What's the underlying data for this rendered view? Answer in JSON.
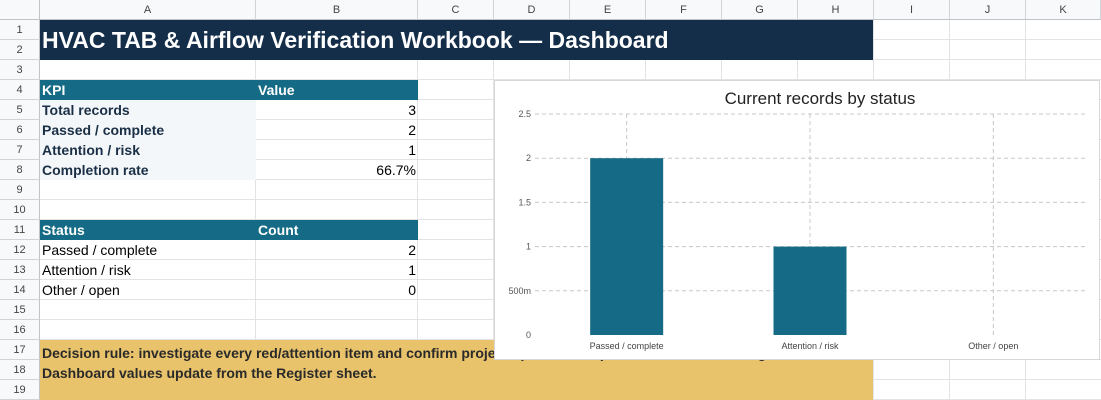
{
  "sheet": {
    "columns": [
      "A",
      "B",
      "C",
      "D",
      "E",
      "F",
      "G",
      "H",
      "I",
      "J",
      "K"
    ],
    "rows": [
      "1",
      "2",
      "3",
      "4",
      "5",
      "6",
      "7",
      "8",
      "9",
      "10",
      "11",
      "12",
      "13",
      "14",
      "15",
      "16",
      "17",
      "18",
      "19"
    ]
  },
  "title": "HVAC TAB & Airflow Verification Workbook — Dashboard",
  "kpi_table": {
    "headers": [
      "KPI",
      "Value"
    ],
    "rows": [
      {
        "label": "Total records",
        "value": "3"
      },
      {
        "label": "Passed / complete",
        "value": "2"
      },
      {
        "label": "Attention / risk",
        "value": "1"
      },
      {
        "label": "Completion rate",
        "value": "66.7%"
      }
    ]
  },
  "status_table": {
    "headers": [
      "Status",
      "Count"
    ],
    "rows": [
      {
        "label": "Passed / complete",
        "value": "2"
      },
      {
        "label": "Attention / risk",
        "value": "1"
      },
      {
        "label": "Other / open",
        "value": "0"
      }
    ]
  },
  "note": {
    "line1": "Decision rule: investigate every red/attention item and confirm project-specific acceptance criteria before sign-off.",
    "line2": "Dashboard values update from the Register sheet."
  },
  "colors": {
    "title_band": "#142e4a",
    "table_header": "#156b85",
    "bar": "#156b85",
    "note_band": "#e8c36b"
  },
  "chart_data": {
    "type": "bar",
    "title": "Current records by status",
    "categories": [
      "Passed / complete",
      "Attention / risk",
      "Other / open"
    ],
    "values": [
      2,
      1,
      0
    ],
    "ylim": [
      0,
      2.5
    ],
    "yticks": [
      0,
      0.5,
      1,
      1.5,
      2,
      2.5
    ],
    "ytick_labels": [
      "0",
      "500m",
      "1",
      "1.5",
      "2",
      "2.5"
    ],
    "grid": true,
    "legend": "none"
  }
}
